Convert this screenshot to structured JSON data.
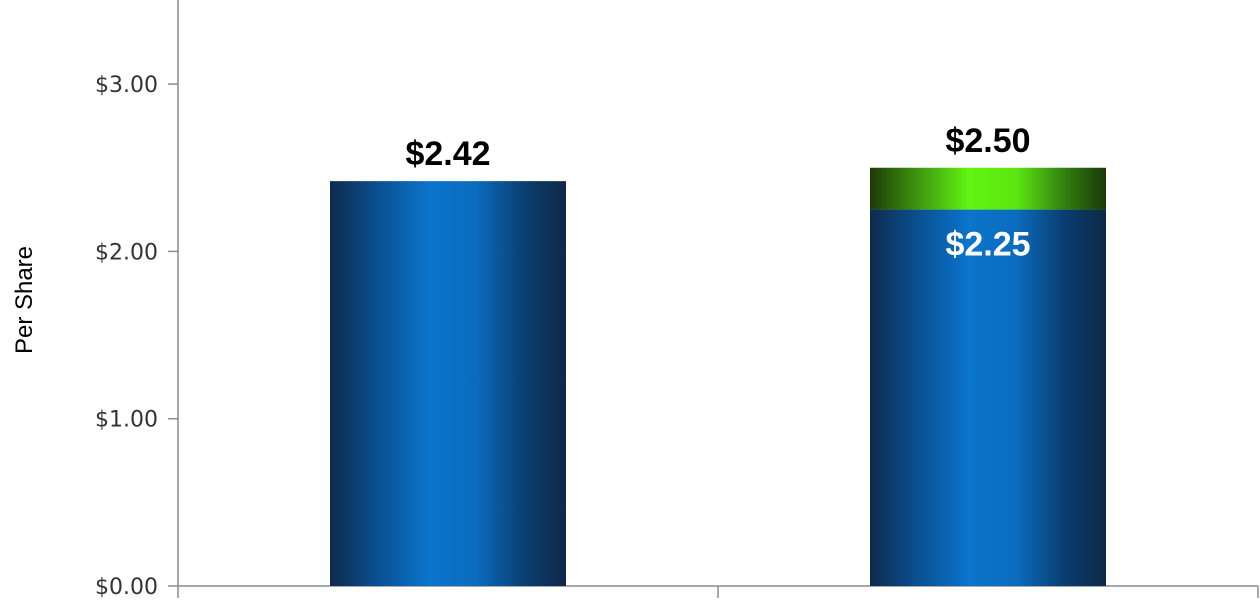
{
  "chart_data": {
    "type": "bar",
    "stacked": true,
    "categories": [
      "",
      ""
    ],
    "series": [
      {
        "values": [
          2.42,
          2.25
        ],
        "color": "#0a6fc4"
      },
      {
        "values": [
          0,
          0.25
        ],
        "color": "#5ef010"
      }
    ],
    "data_labels": [
      {
        "category_index": 0,
        "text": "$2.42",
        "value": 2.42,
        "color": "#000000"
      },
      {
        "category_index": 1,
        "text": "$2.50",
        "value": 2.5,
        "color": "#000000"
      },
      {
        "category_index": 1,
        "text": "$2.25",
        "value": 2.25,
        "color": "#ffffff"
      }
    ],
    "title": "",
    "xlabel": "",
    "ylabel": "Per Share",
    "ylim": [
      0,
      3.5
    ],
    "yticks": [
      0,
      1,
      2,
      3
    ],
    "ytick_labels": [
      "$0.00",
      "$1.00",
      "$2.00",
      "$3.00"
    ],
    "grid": false,
    "legend": "none"
  }
}
